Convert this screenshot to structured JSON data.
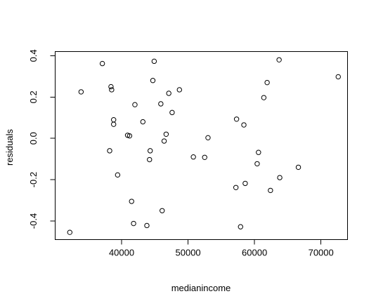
{
  "chart_data": {
    "type": "scatter",
    "title": "",
    "xlabel": "medianincome",
    "ylabel": "residuals",
    "xlim": [
      30000,
      74000
    ],
    "ylim": [
      -0.49,
      0.42
    ],
    "x_ticks": [
      40000,
      50000,
      60000,
      70000
    ],
    "x_tick_labels": [
      "40000",
      "50000",
      "60000",
      "70000"
    ],
    "y_ticks": [
      -0.4,
      -0.2,
      0.0,
      0.2,
      0.4
    ],
    "y_tick_labels": [
      "-0.4",
      "-0.2",
      "0.0",
      "0.2",
      "0.4"
    ],
    "grid": false,
    "legend": "none",
    "marker": "open-circle",
    "colors": {
      "marker": "#000000",
      "axis": "#000000",
      "background": "#ffffff"
    },
    "points": [
      {
        "x": 32200,
        "y": -0.455
      },
      {
        "x": 33900,
        "y": 0.225
      },
      {
        "x": 37100,
        "y": 0.362
      },
      {
        "x": 38200,
        "y": -0.06
      },
      {
        "x": 38400,
        "y": 0.25
      },
      {
        "x": 38500,
        "y": 0.235
      },
      {
        "x": 38800,
        "y": 0.09
      },
      {
        "x": 38800,
        "y": 0.068
      },
      {
        "x": 39400,
        "y": -0.177
      },
      {
        "x": 40900,
        "y": 0.015
      },
      {
        "x": 41200,
        "y": 0.012
      },
      {
        "x": 41500,
        "y": -0.305
      },
      {
        "x": 41800,
        "y": -0.412
      },
      {
        "x": 42000,
        "y": 0.163
      },
      {
        "x": 43200,
        "y": 0.08
      },
      {
        "x": 43800,
        "y": -0.422
      },
      {
        "x": 44200,
        "y": -0.103
      },
      {
        "x": 44300,
        "y": -0.06
      },
      {
        "x": 44700,
        "y": 0.28
      },
      {
        "x": 44900,
        "y": 0.373
      },
      {
        "x": 45900,
        "y": 0.167
      },
      {
        "x": 46100,
        "y": -0.35
      },
      {
        "x": 46400,
        "y": -0.013
      },
      {
        "x": 46700,
        "y": 0.02
      },
      {
        "x": 47100,
        "y": 0.218
      },
      {
        "x": 47600,
        "y": 0.125
      },
      {
        "x": 48700,
        "y": 0.235
      },
      {
        "x": 50800,
        "y": -0.09
      },
      {
        "x": 52500,
        "y": -0.092
      },
      {
        "x": 53000,
        "y": 0.003
      },
      {
        "x": 57200,
        "y": -0.238
      },
      {
        "x": 57300,
        "y": 0.093
      },
      {
        "x": 57900,
        "y": -0.428
      },
      {
        "x": 58400,
        "y": 0.065
      },
      {
        "x": 58600,
        "y": -0.218
      },
      {
        "x": 60400,
        "y": -0.123
      },
      {
        "x": 60600,
        "y": -0.068
      },
      {
        "x": 61400,
        "y": 0.197
      },
      {
        "x": 61900,
        "y": 0.27
      },
      {
        "x": 62400,
        "y": -0.252
      },
      {
        "x": 63700,
        "y": 0.38
      },
      {
        "x": 63800,
        "y": -0.19
      },
      {
        "x": 66600,
        "y": -0.14
      },
      {
        "x": 72600,
        "y": 0.298
      }
    ]
  }
}
